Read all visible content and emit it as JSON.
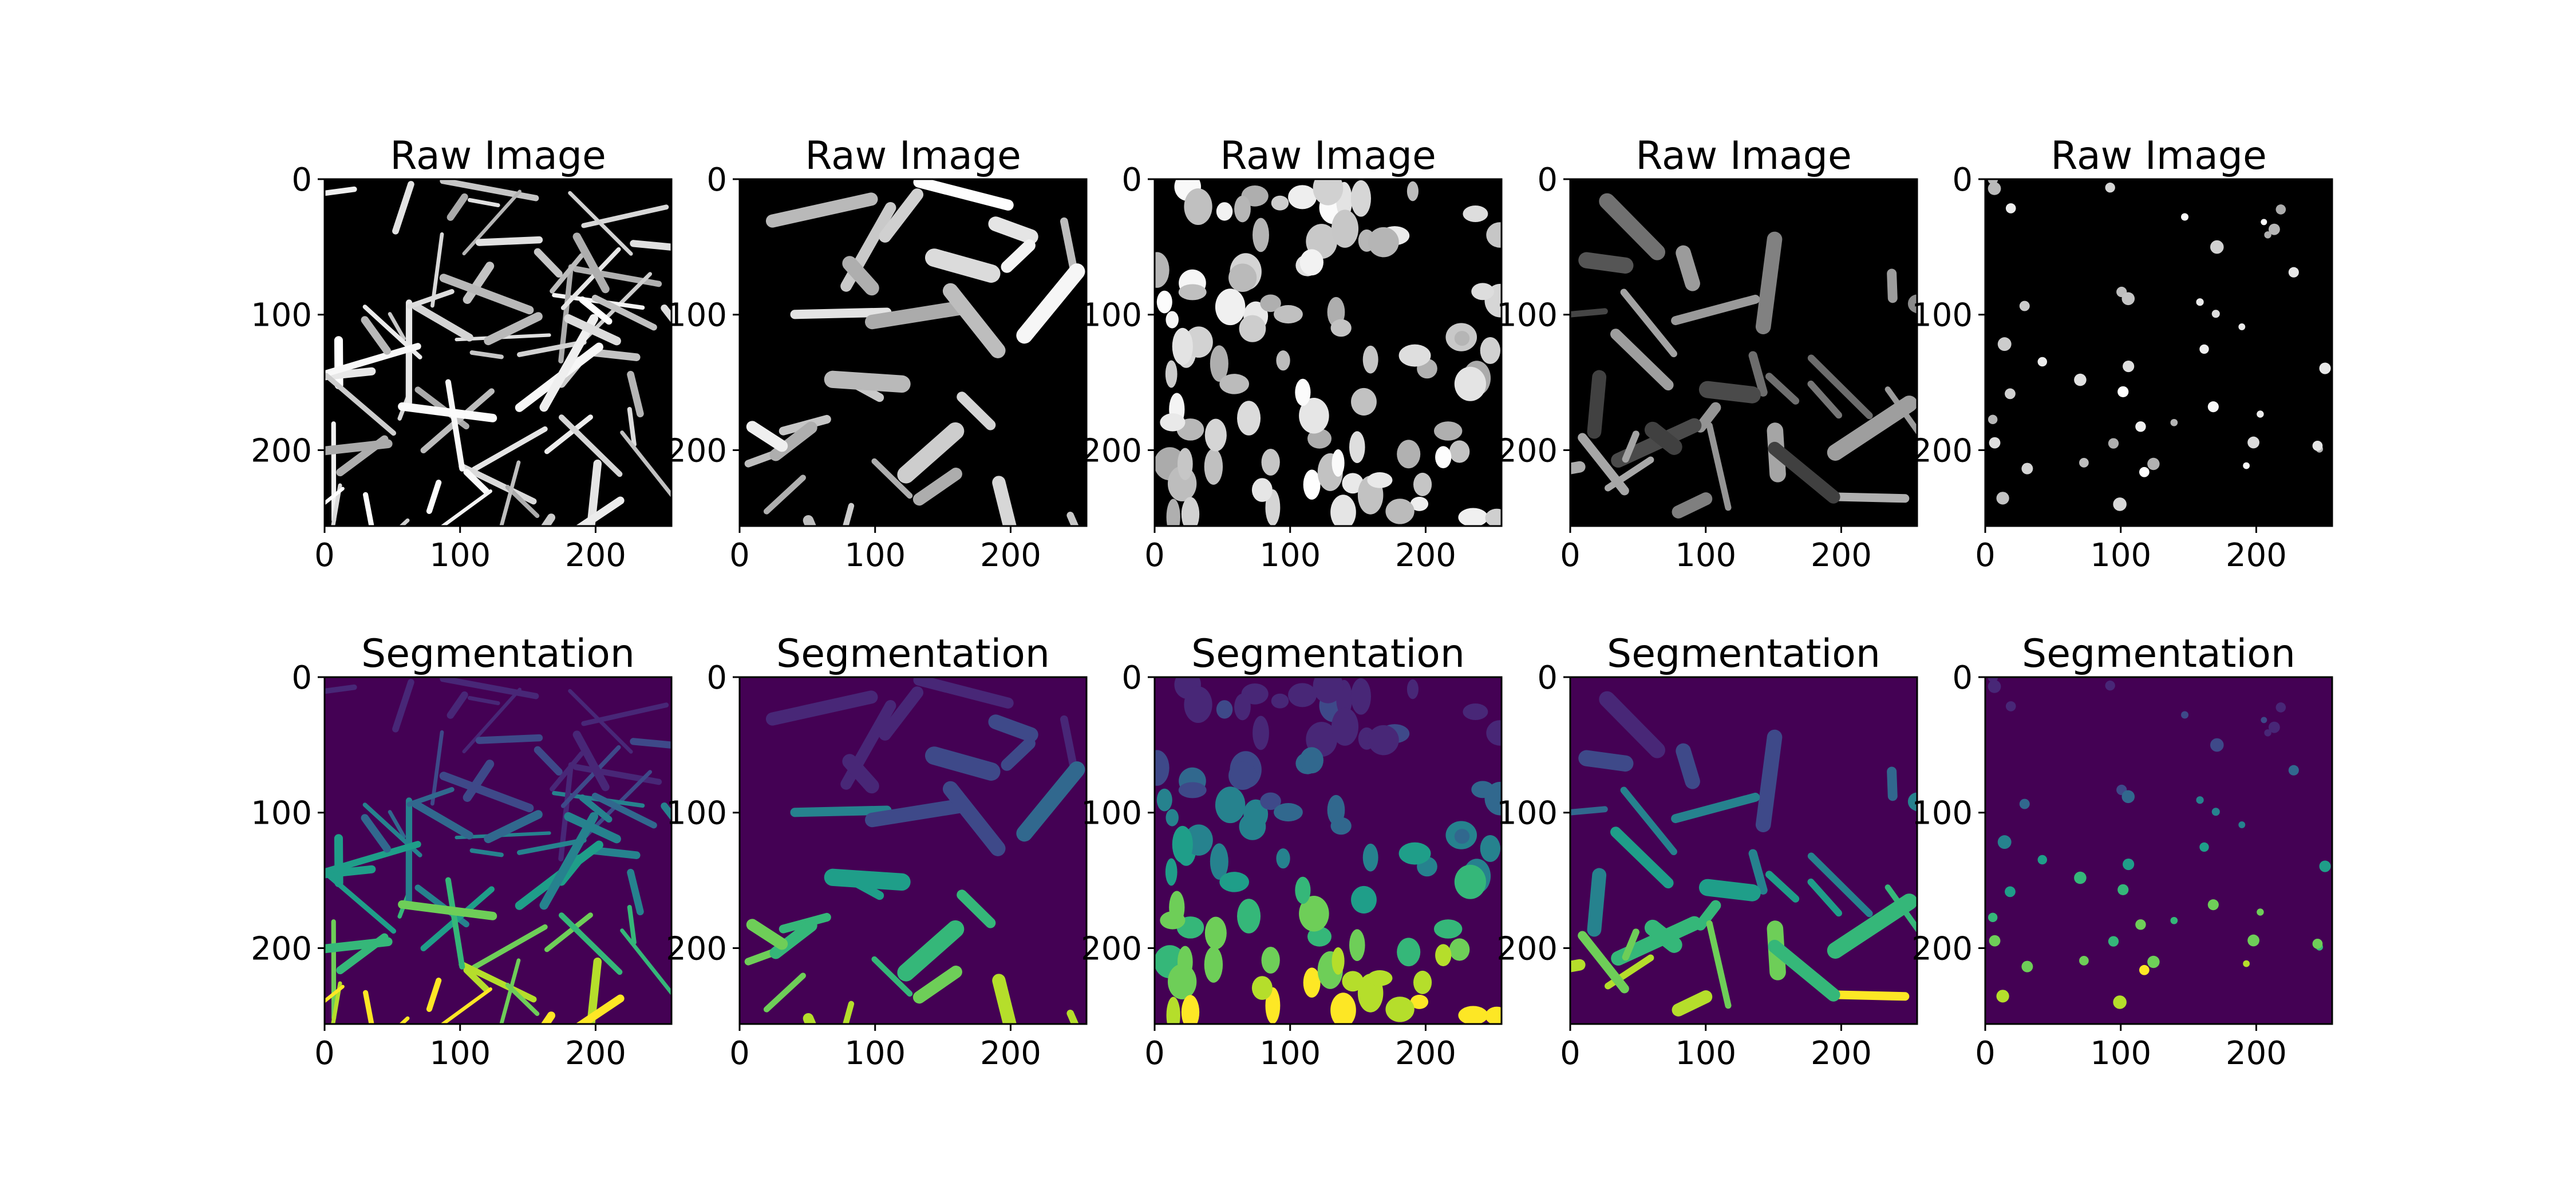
{
  "figure": {
    "rows": [
      {
        "panel_title": "Raw Image",
        "kind": "raw",
        "colormap": "gray",
        "panels": [
          {
            "style": "network",
            "seed": 11
          },
          {
            "style": "streaks",
            "seed": 23
          },
          {
            "style": "blobs_dense",
            "seed": 37
          },
          {
            "style": "dim_streaks",
            "seed": 41
          },
          {
            "style": "dots",
            "seed": 53
          }
        ]
      },
      {
        "panel_title": "Segmentation",
        "kind": "labels",
        "colormap": "viridis",
        "panels": [
          {
            "style": "network",
            "seed": 11
          },
          {
            "style": "streaks",
            "seed": 23
          },
          {
            "style": "blobs_dense",
            "seed": 37
          },
          {
            "style": "dim_streaks",
            "seed": 41
          },
          {
            "style": "dots",
            "seed": 53
          }
        ]
      }
    ],
    "axes": {
      "x_ticks": [
        "0",
        "100",
        "200"
      ],
      "y_ticks": [
        "0",
        "100",
        "200"
      ],
      "x_tick_values": [
        0,
        100,
        200
      ],
      "y_tick_values": [
        0,
        100,
        200
      ],
      "extent": [
        0,
        256
      ]
    },
    "colors": {
      "viridis": [
        "#440154",
        "#482777",
        "#3e4989",
        "#31688e",
        "#26828e",
        "#1f9e89",
        "#35b779",
        "#6ece58",
        "#b5de2b",
        "#fde725"
      ],
      "gray_low": "#000000",
      "gray_high": "#ffffff"
    }
  }
}
